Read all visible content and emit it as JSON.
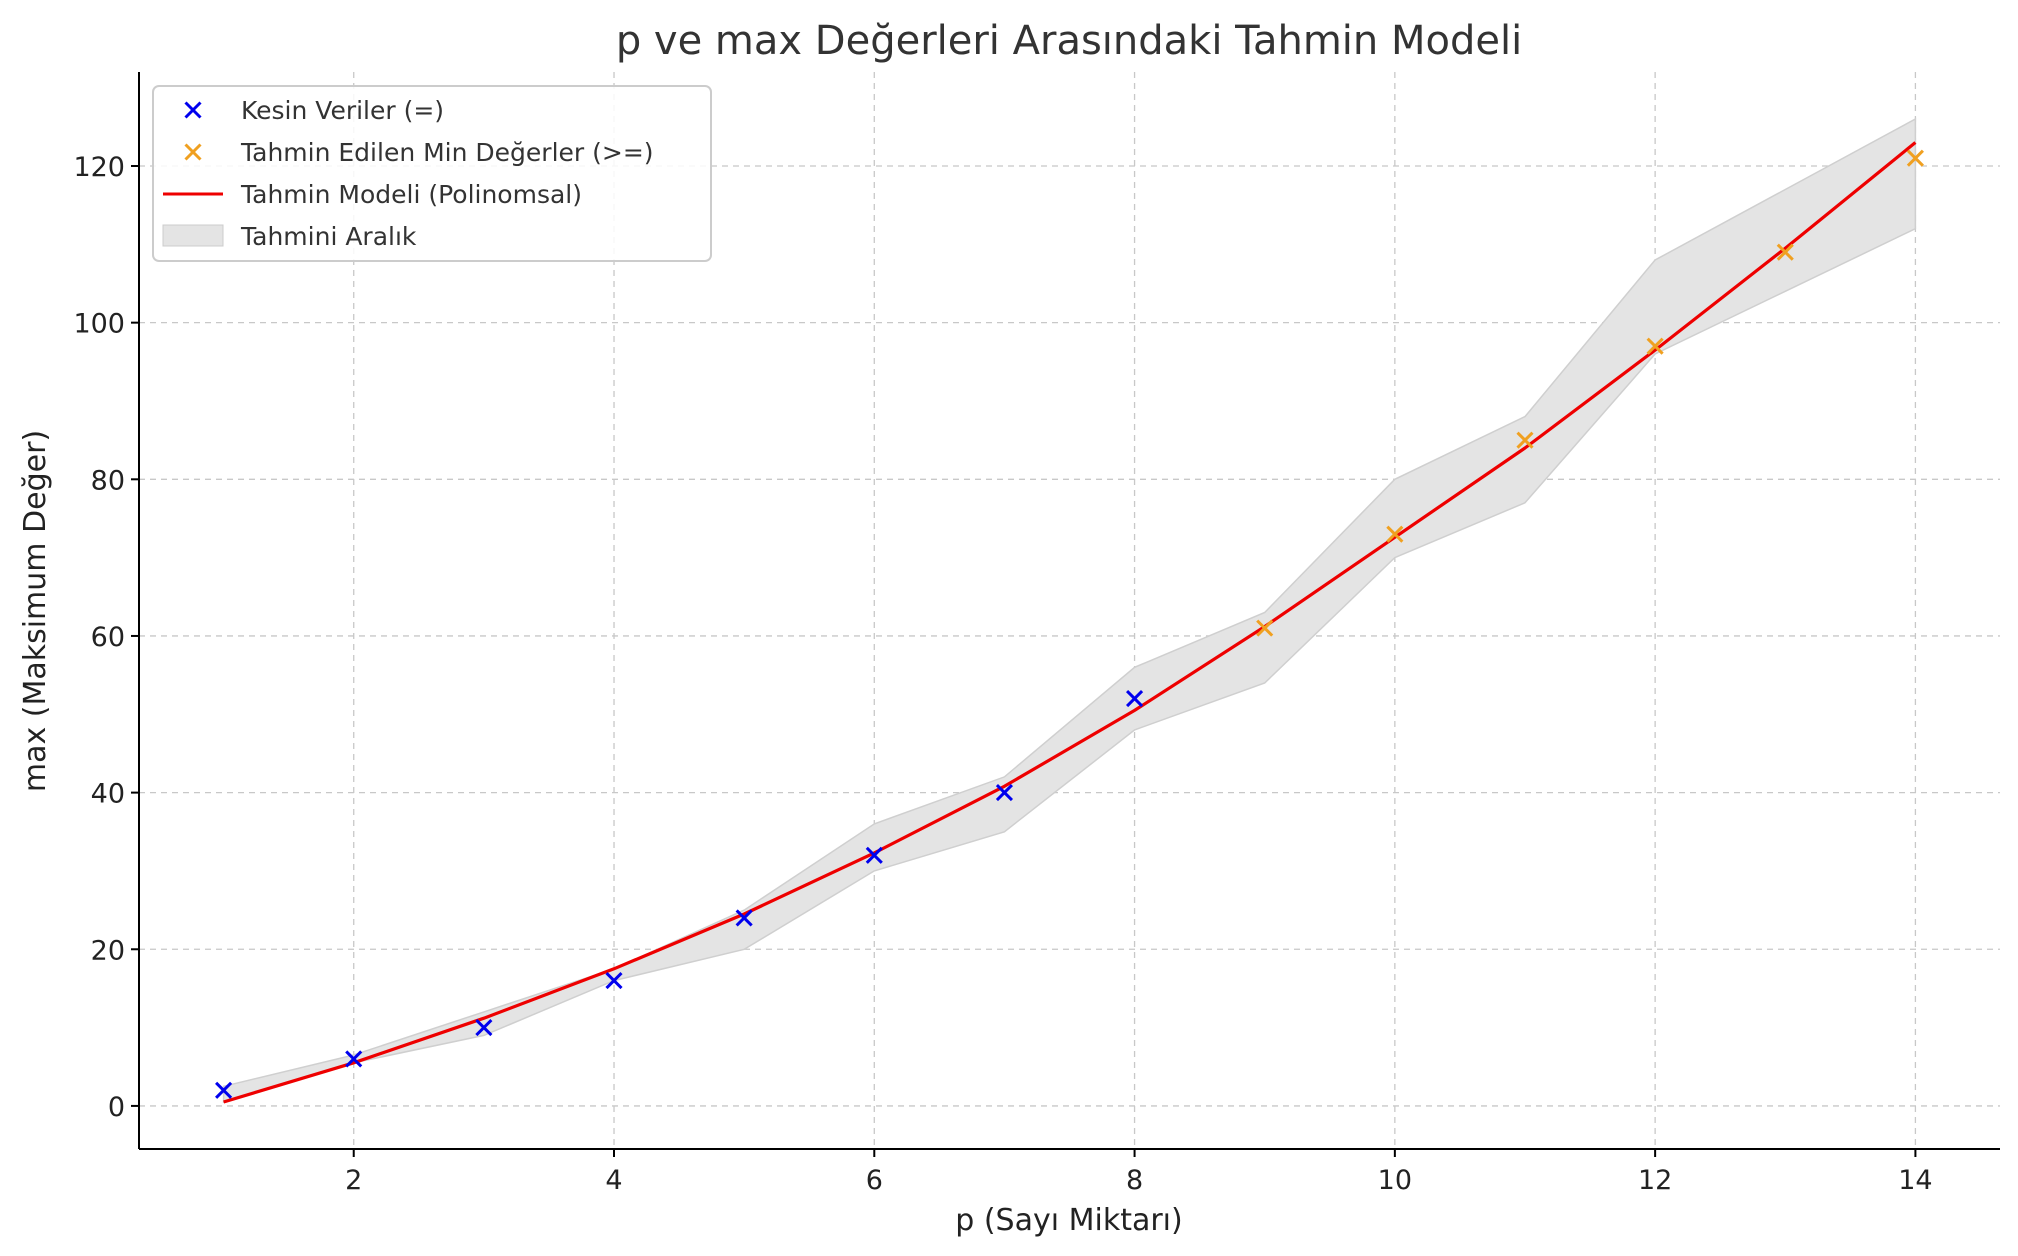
{
  "chart_data": {
    "type": "line",
    "title": "p ve max Değerleri Arasındaki Tahmin Modeli",
    "xlabel": "p (Sayı Miktarı)",
    "ylabel": "max (Maksimum Değer)",
    "xlim": [
      0.35,
      14.65
    ],
    "ylim": [
      -5.5,
      132
    ],
    "xticks": [
      2,
      4,
      6,
      8,
      10,
      12,
      14
    ],
    "yticks": [
      0,
      20,
      40,
      60,
      80,
      100,
      120
    ],
    "grid": true,
    "legend_position": "top-left",
    "series": [
      {
        "name": "Kesin Veriler (=)",
        "kind": "scatter",
        "marker": "x",
        "color": "#0000ee",
        "x": [
          1,
          2,
          3,
          4,
          5,
          6,
          7,
          8
        ],
        "y": [
          2,
          6,
          10,
          16,
          24,
          32,
          40,
          52
        ]
      },
      {
        "name": "Tahmin Edilen Min Değerler (>=)",
        "kind": "scatter",
        "marker": "x",
        "color": "#f0a020",
        "x": [
          9,
          10,
          11,
          12,
          13,
          14
        ],
        "y": [
          61,
          73,
          85,
          97,
          109,
          121
        ]
      },
      {
        "name": "Tahmin Modeli (Polinomsal)",
        "kind": "line",
        "color": "#ee0000",
        "x": [
          1,
          2,
          3,
          4,
          5,
          6,
          7,
          8,
          9,
          10,
          11,
          12,
          13,
          14
        ],
        "y": [
          0.5,
          5.5,
          11.2,
          17.5,
          24.5,
          32.3,
          40.8,
          50.5,
          61.2,
          72.6,
          84.0,
          96.5,
          109.5,
          123.0
        ]
      },
      {
        "name": "Tahmini Aralık",
        "kind": "band",
        "color": "#e4e4e4",
        "x": [
          1,
          2,
          3,
          4,
          5,
          6,
          7,
          8,
          9,
          10,
          11,
          12,
          13,
          14
        ],
        "lower": [
          0.5,
          5.5,
          9,
          16,
          20,
          30,
          35,
          48,
          54,
          70,
          77,
          96,
          104,
          112
        ],
        "upper": [
          2.5,
          6.5,
          12,
          17.5,
          25,
          36,
          42,
          56,
          63,
          80,
          88,
          108,
          117,
          126
        ]
      }
    ]
  }
}
